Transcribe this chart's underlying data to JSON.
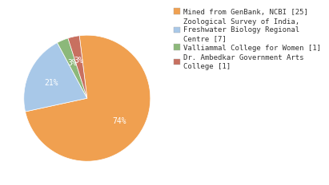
{
  "labels": [
    "Mined from GenBank, NCBI [25]",
    "Zoological Survey of India,\nFreshwater Biology Regional\nCentre [7]",
    "Valliammal College for Women [1]",
    "Dr. Ambedkar Government Arts\nCollege [1]"
  ],
  "values": [
    25,
    7,
    1,
    1
  ],
  "colors": [
    "#f0a050",
    "#a8c8e8",
    "#8cb87a",
    "#c87060"
  ],
  "startangle": 97,
  "background_color": "#ffffff",
  "text_color": "#ffffff",
  "autopct_fontsize": 7,
  "legend_fontsize": 6.5
}
